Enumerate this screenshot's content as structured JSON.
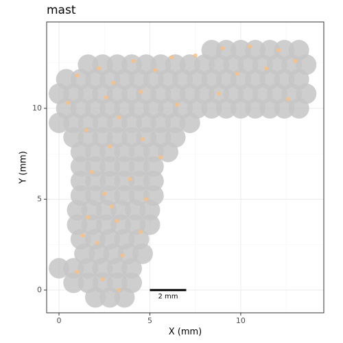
{
  "chart_data": {
    "type": "scatter",
    "title": "mast",
    "xlabel": "X (mm)",
    "ylabel": "Y (mm)",
    "xlim": [
      -0.68,
      14.57
    ],
    "ylim": [
      -1.25,
      14.75
    ],
    "xticks": [
      0,
      5,
      10
    ],
    "yticks": [
      0,
      5,
      10
    ],
    "xminor": [
      2.5,
      7.5,
      12.5
    ],
    "yminor": [
      2.5,
      7.5,
      12.5
    ],
    "grid": true,
    "series": [
      {
        "color": "#c6c6c6",
        "x": [
          8.4,
          9.2,
          10.0,
          10.8,
          11.6,
          12.4,
          13.2,
          1.6,
          2.4,
          3.2,
          4.0,
          4.8,
          5.6,
          6.4,
          7.2,
          8.0,
          8.8,
          9.6,
          10.4,
          11.2,
          12.0,
          12.8,
          13.6,
          0.4,
          1.2,
          2.0,
          2.8,
          3.6,
          4.4,
          5.2,
          6.0,
          6.8,
          7.6,
          8.4,
          9.2,
          10.0,
          10.8,
          11.6,
          12.4,
          13.2,
          0,
          0.8,
          1.6,
          2.4,
          3.2,
          4.0,
          4.8,
          5.6,
          6.4,
          7.2,
          8.0,
          8.8,
          9.6,
          10.4,
          11.2,
          12.0,
          12.8,
          13.6,
          0.4,
          1.2,
          2.0,
          2.8,
          3.6,
          4.4,
          5.2,
          6.0,
          6.8,
          7.6,
          8.4,
          9.2,
          10.0,
          10.8,
          11.6,
          12.4,
          13.2,
          0,
          0.8,
          1.6,
          2.4,
          3.2,
          4.0,
          4.8,
          5.6,
          6.4,
          7.2,
          0.8,
          1.6,
          2.4,
          3.2,
          4.0,
          4.8,
          5.6,
          6.4,
          1.2,
          2.0,
          2.8,
          3.6,
          4.4,
          5.2,
          6.0,
          1.2,
          2.0,
          2.8,
          3.6,
          4.4,
          5.2,
          1.2,
          2.0,
          2.8,
          3.6,
          4.4,
          5.2,
          1.2,
          2.0,
          2.8,
          3.6,
          4.4,
          5.2,
          1.0,
          1.8,
          2.6,
          3.4,
          4.2,
          5.0,
          1.0,
          1.8,
          2.6,
          3.4,
          4.2,
          5.0,
          1.2,
          2.0,
          2.8,
          3.6,
          4.4,
          1.4,
          2.2,
          3.0,
          3.8,
          4.6,
          0,
          0.8,
          1.6,
          2.4,
          3.2,
          4.0,
          0.8,
          1.6,
          2.4,
          3.2,
          4.0,
          2.0,
          2.8,
          3.6
        ],
        "y": [
          13.2,
          13.2,
          13.2,
          13.2,
          13.2,
          13.2,
          13.2,
          12.4,
          12.4,
          12.4,
          12.4,
          12.4,
          12.4,
          12.4,
          12.4,
          12.4,
          12.4,
          12.4,
          12.4,
          12.4,
          12.4,
          12.4,
          12.4,
          11.6,
          11.6,
          11.6,
          11.6,
          11.6,
          11.6,
          11.6,
          11.6,
          11.6,
          11.6,
          11.6,
          11.6,
          11.6,
          11.6,
          11.6,
          11.6,
          11.6,
          10.8,
          10.8,
          10.8,
          10.8,
          10.8,
          10.8,
          10.8,
          10.8,
          10.8,
          10.8,
          10.8,
          10.8,
          10.8,
          10.8,
          10.8,
          10.8,
          10.8,
          10.8,
          10.0,
          10.0,
          10.0,
          10.0,
          10.0,
          10.0,
          10.0,
          10.0,
          10.0,
          10.0,
          10.0,
          10.0,
          10.0,
          10.0,
          10.0,
          10.0,
          10.0,
          9.2,
          9.2,
          9.2,
          9.2,
          9.2,
          9.2,
          9.2,
          9.2,
          9.2,
          9.2,
          8.4,
          8.4,
          8.4,
          8.4,
          8.4,
          8.4,
          8.4,
          8.4,
          7.6,
          7.6,
          7.6,
          7.6,
          7.6,
          7.6,
          7.6,
          6.8,
          6.8,
          6.8,
          6.8,
          6.8,
          6.8,
          6.0,
          6.0,
          6.0,
          6.0,
          6.0,
          6.0,
          5.2,
          5.2,
          5.2,
          5.2,
          5.2,
          5.2,
          4.4,
          4.4,
          4.4,
          4.4,
          4.4,
          4.4,
          3.6,
          3.6,
          3.6,
          3.6,
          3.6,
          3.6,
          2.8,
          2.8,
          2.8,
          2.8,
          2.8,
          2.0,
          2.0,
          2.0,
          2.0,
          2.0,
          1.2,
          1.2,
          1.2,
          1.2,
          1.2,
          1.2,
          0.4,
          0.4,
          0.4,
          0.4,
          0.4,
          -0.4,
          -0.4,
          -0.4
        ]
      },
      {
        "color": "#fdbf80",
        "x": [
          1.0,
          2.2,
          3.0,
          4.1,
          5.3,
          6.2,
          7.5,
          9.0,
          10.5,
          12.1,
          13.0,
          11.4,
          9.8,
          0.5,
          2.6,
          4.5,
          3.3,
          1.5,
          2.8,
          4.6,
          5.6,
          1.8,
          3.9,
          2.5,
          4.8,
          1.6,
          3.2,
          4.5,
          2.1,
          3.5,
          1.0,
          2.4,
          3.3,
          12.6,
          8.8,
          6.5,
          1.3,
          2.9
        ],
        "y": [
          11.8,
          12.2,
          11.4,
          12.6,
          12.1,
          12.8,
          12.9,
          13.3,
          13.4,
          13.2,
          12.6,
          12.2,
          11.9,
          10.3,
          10.6,
          10.9,
          9.5,
          8.8,
          7.9,
          8.3,
          7.3,
          6.5,
          6.1,
          5.3,
          5.0,
          4.0,
          3.8,
          3.2,
          2.6,
          1.9,
          1.0,
          0.6,
          0.0,
          10.5,
          10.8,
          10.2,
          3.0,
          4.6
        ]
      }
    ],
    "scale_bar": {
      "label": "2 mm",
      "x": [
        5,
        7
      ],
      "y": 0
    }
  }
}
